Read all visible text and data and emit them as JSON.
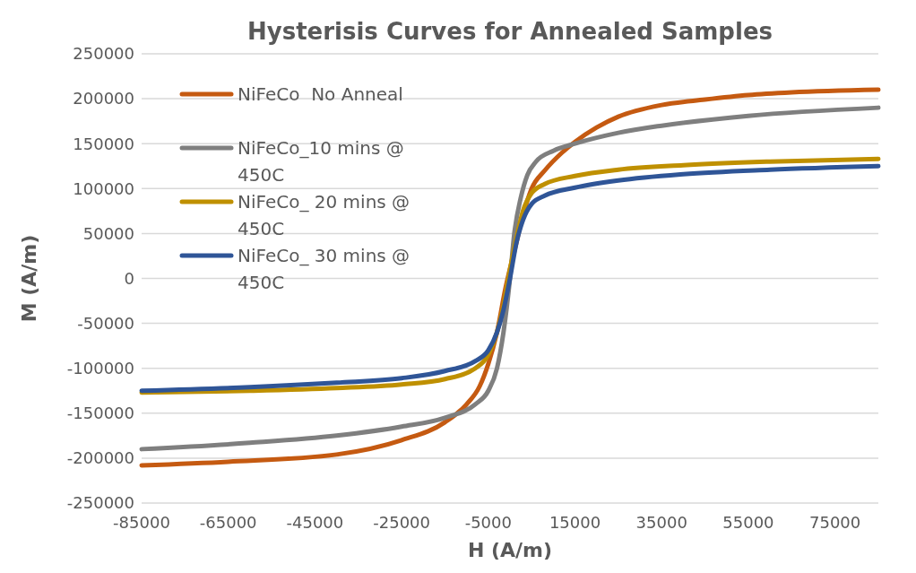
{
  "chart_data": {
    "type": "line",
    "title": "Hysterisis Curves for Annealed Samples",
    "xlabel": "H (A/m)",
    "ylabel": "M (A/m)",
    "xlim": [
      -85000,
      85000
    ],
    "xticks": [
      -85000,
      -65000,
      -45000,
      -25000,
      -5000,
      15000,
      35000,
      55000,
      75000
    ],
    "ylim": [
      -250000,
      250000
    ],
    "yticks": [
      -250000,
      -200000,
      -150000,
      -100000,
      -50000,
      0,
      50000,
      100000,
      150000,
      200000,
      250000
    ],
    "grid": "y",
    "legend": "top left",
    "marker": "none",
    "line_style": "solid",
    "series": [
      {
        "name": "NiFeCo  No Anneal",
        "color": "#c55a11",
        "x": [
          -85000,
          -65000,
          -40000,
          -25000,
          -15000,
          -10000,
          -7000,
          -5000,
          -3000,
          -1000,
          1000,
          3000,
          5000,
          8000,
          12000,
          15000,
          20000,
          25000,
          35000,
          45000,
          55000,
          65000,
          85000
        ],
        "values": [
          -208000,
          -204000,
          -196000,
          -180000,
          -160000,
          -140000,
          -120000,
          -95000,
          -60000,
          -10000,
          30000,
          70000,
          100000,
          120000,
          140000,
          152000,
          168000,
          180000,
          193000,
          199000,
          204000,
          207000,
          210000
        ]
      },
      {
        "name": "NiFeCo_10 mins @ 450C",
        "color": "#7f7f7f",
        "x": [
          -85000,
          -60000,
          -40000,
          -25000,
          -15000,
          -8000,
          -5000,
          -3000,
          -1500,
          0,
          1000,
          2500,
          4000,
          6000,
          10000,
          15000,
          25000,
          35000,
          55000,
          85000
        ],
        "values": [
          -190000,
          -183000,
          -175000,
          -165000,
          -155000,
          -140000,
          -125000,
          -100000,
          -60000,
          0,
          50000,
          90000,
          115000,
          130000,
          142000,
          150000,
          162000,
          170000,
          181000,
          190000
        ]
      },
      {
        "name": "NiFeCo_ 20 mins @ 450C",
        "color": "#bf9000",
        "x": [
          -85000,
          -60000,
          -40000,
          -25000,
          -15000,
          -8000,
          -5000,
          -3000,
          -1500,
          0,
          1500,
          3000,
          5000,
          8000,
          15000,
          25000,
          40000,
          60000,
          85000
        ],
        "values": [
          -127000,
          -125000,
          -122000,
          -118000,
          -112000,
          -100000,
          -85000,
          -60000,
          -30000,
          10000,
          45000,
          75000,
          95000,
          105000,
          114000,
          121000,
          126000,
          130000,
          133000
        ]
      },
      {
        "name": "NiFeCo_ 30 mins @ 450C",
        "color": "#2f5597",
        "x": [
          -85000,
          -60000,
          -40000,
          -25000,
          -15000,
          -8000,
          -5000,
          -3000,
          -1500,
          0,
          1500,
          3000,
          5000,
          8000,
          15000,
          25000,
          40000,
          60000,
          85000
        ],
        "values": [
          -125000,
          -121000,
          -116000,
          -111000,
          -103000,
          -92000,
          -80000,
          -60000,
          -35000,
          0,
          40000,
          65000,
          83000,
          92000,
          101000,
          109000,
          116000,
          121000,
          125000
        ]
      }
    ]
  }
}
